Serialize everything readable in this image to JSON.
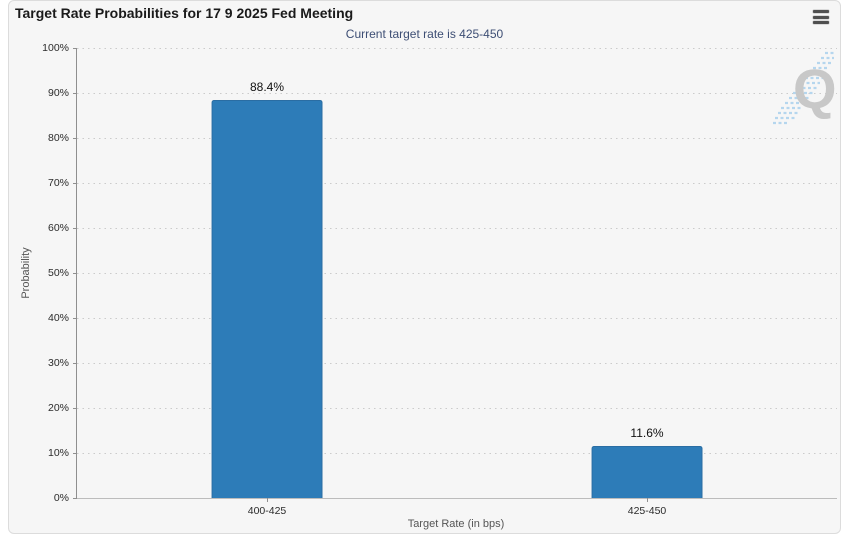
{
  "header": {
    "title": "Target Rate Probabilities for 17 9 2025 Fed Meeting",
    "menu_icon": "hamburger-menu-icon"
  },
  "subtitle": "Current target rate is 425-450",
  "watermark_letter": "Q",
  "colors": {
    "card_background": "#f6f6f6",
    "bar_fill": "#2d7cb8",
    "bar_border": "#2a6da3",
    "subtitle_text": "#3d4e74",
    "grid_dots": "#cbcbcb",
    "axis_line": "#8f8f8f",
    "watermark_gray": "#c8c8c8",
    "watermark_blue": "#b5d6ee"
  },
  "chart_data": {
    "type": "bar",
    "title": "Target Rate Probabilities for 17 9 2025 Fed Meeting",
    "subtitle": "Current target rate is 425-450",
    "categories": [
      "400-425",
      "425-450"
    ],
    "values": [
      88.4,
      11.6
    ],
    "value_labels": [
      "88.4%",
      "11.6%"
    ],
    "xlabel": "Target Rate (in bps)",
    "ylabel": "Probability",
    "ylim": [
      0,
      100
    ],
    "yticks": [
      "0%",
      "10%",
      "20%",
      "30%",
      "40%",
      "50%",
      "60%",
      "70%",
      "80%",
      "90%",
      "100%"
    ],
    "grid": "dotted-horizontal",
    "legend": "none"
  }
}
